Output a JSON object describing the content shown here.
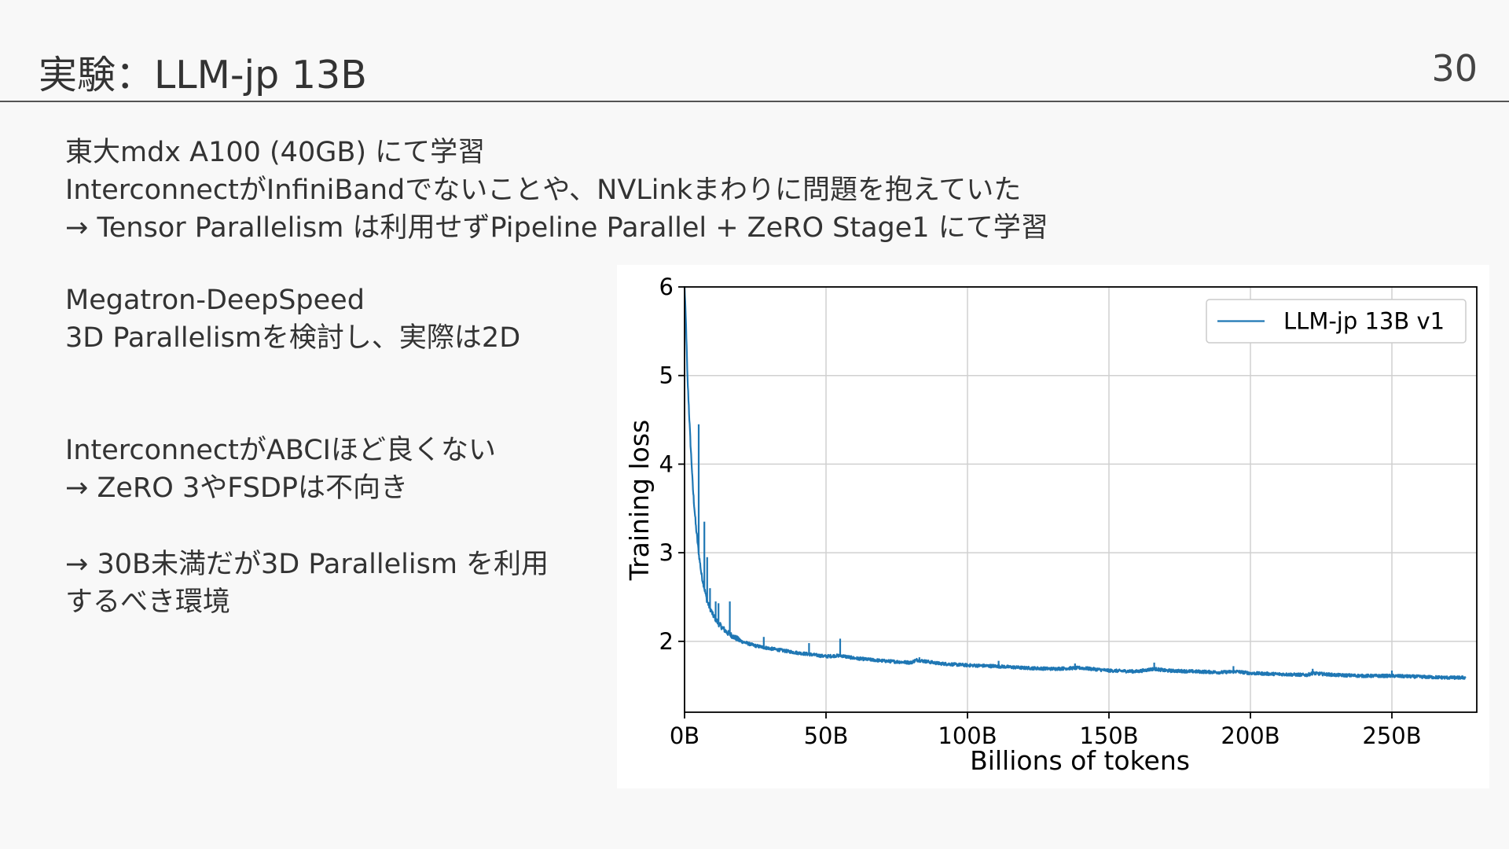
{
  "slide": {
    "title": "実験：LLM-jp 13B",
    "page_number": "30"
  },
  "text": {
    "block1": [
      "東大mdx A100 (40GB) にて学習",
      "InterconnectがInfiniBandでないことや、NVLinkまわりに問題を抱えていた",
      "→ Tensor Parallelism は利用せずPipeline Parallel + ZeRO Stage1 にて学習"
    ],
    "block2": [
      "Megatron-DeepSpeed",
      "3D Parallelismを検討し、実際は2D"
    ],
    "block3": [
      "InterconnectがABCIほど良くない",
      "→ ZeRO 3やFSDPは不向き"
    ],
    "block4": [
      "→ 30B未満だが3D Parallelism を利用",
      "するべき環境"
    ]
  },
  "colors": {
    "series": "#1f77b4",
    "grid": "#d0d0d0"
  },
  "chart_data": {
    "type": "line",
    "xlabel": "Billions of tokens",
    "ylabel": "Training loss",
    "xlim": [
      0,
      280
    ],
    "ylim": [
      1.2,
      6
    ],
    "x_ticks": [
      0,
      50,
      100,
      150,
      200,
      250
    ],
    "x_tick_labels": [
      "0B",
      "50B",
      "100B",
      "150B",
      "200B",
      "250B"
    ],
    "y_ticks": [
      2,
      3,
      4,
      5,
      6
    ],
    "y_tick_labels": [
      "2",
      "3",
      "4",
      "5",
      "6"
    ],
    "grid": true,
    "legend": "top-right",
    "series": [
      {
        "name": "LLM-jp 13B v1",
        "x": [
          0,
          0.5,
          1,
          2,
          3,
          4,
          5,
          6,
          7,
          8,
          10,
          12,
          15,
          20,
          25,
          30,
          40,
          50,
          55,
          60,
          70,
          80,
          82,
          90,
          100,
          110,
          120,
          130,
          140,
          150,
          160,
          166,
          170,
          180,
          190,
          195,
          200,
          210,
          220,
          222,
          230,
          240,
          250,
          260,
          270,
          276
        ],
        "y": [
          6.0,
          5.6,
          5.0,
          4.3,
          3.7,
          3.3,
          3.0,
          2.75,
          2.6,
          2.45,
          2.3,
          2.2,
          2.1,
          2.0,
          1.95,
          1.92,
          1.87,
          1.83,
          1.84,
          1.81,
          1.78,
          1.76,
          1.79,
          1.75,
          1.73,
          1.72,
          1.7,
          1.69,
          1.7,
          1.67,
          1.66,
          1.69,
          1.67,
          1.66,
          1.65,
          1.66,
          1.64,
          1.63,
          1.62,
          1.64,
          1.62,
          1.61,
          1.61,
          1.6,
          1.59,
          1.59
        ]
      }
    ],
    "spikes": [
      {
        "x": 5,
        "y": 4.45
      },
      {
        "x": 7,
        "y": 3.35
      },
      {
        "x": 8,
        "y": 2.95
      },
      {
        "x": 9,
        "y": 2.6
      },
      {
        "x": 11,
        "y": 2.45
      },
      {
        "x": 12,
        "y": 2.43
      },
      {
        "x": 16,
        "y": 2.45
      },
      {
        "x": 28,
        "y": 2.05
      },
      {
        "x": 44,
        "y": 1.98
      },
      {
        "x": 55,
        "y": 2.03
      },
      {
        "x": 83,
        "y": 1.82
      },
      {
        "x": 111,
        "y": 1.78
      },
      {
        "x": 138,
        "y": 1.75
      },
      {
        "x": 166,
        "y": 1.76
      },
      {
        "x": 194,
        "y": 1.72
      },
      {
        "x": 222,
        "y": 1.69
      },
      {
        "x": 250,
        "y": 1.67
      }
    ]
  }
}
